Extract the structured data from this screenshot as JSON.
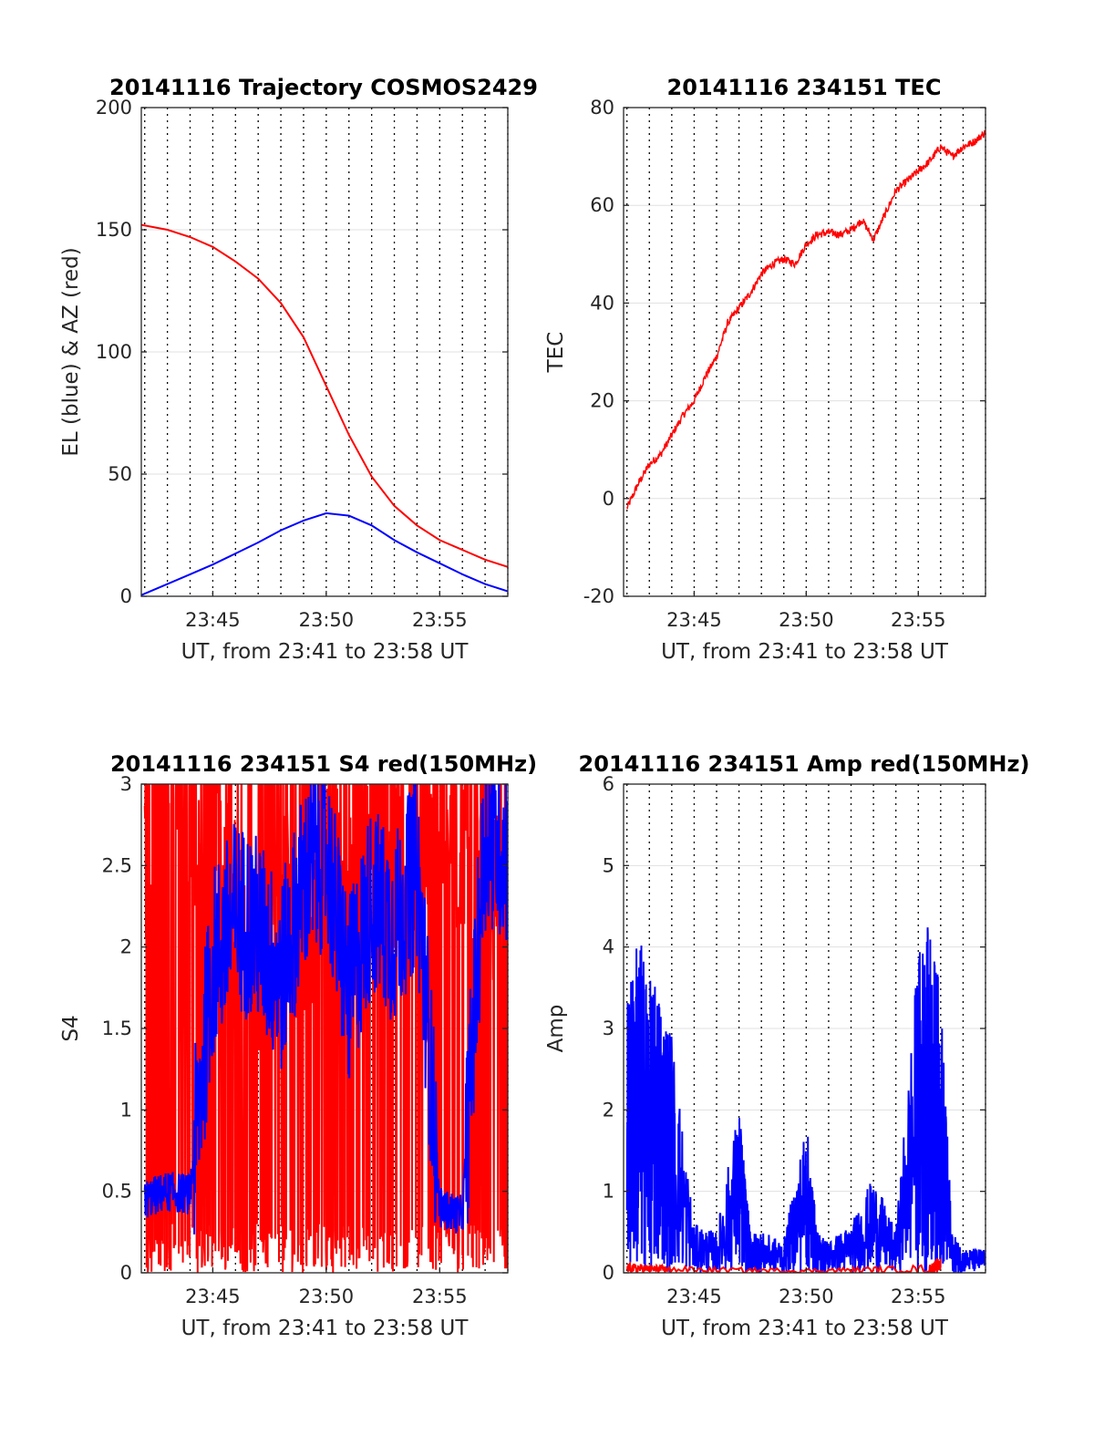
{
  "chart_data": [
    {
      "type": "line",
      "title": "20141116 Trajectory COSMOS2429",
      "xlabel": "UT, from 23:41 to 23:58 UT",
      "ylabel": "EL (blue) & AZ (red)",
      "xlim": [
        "23:41:51",
        "23:58:00"
      ],
      "ylim": [
        0,
        200
      ],
      "xticks": [
        "23:45",
        "23:50",
        "23:55"
      ],
      "yticks": [
        0,
        50,
        100,
        150,
        200
      ],
      "grid": true,
      "vertical_dotted_gridlines": true,
      "series": [
        {
          "color": "#ff0000",
          "x": [
            "23:41:51",
            "23:43:00",
            "23:44:00",
            "23:45:00",
            "23:46:00",
            "23:47:00",
            "23:48:00",
            "23:49:00",
            "23:50:00",
            "23:51:00",
            "23:52:00",
            "23:53:00",
            "23:54:00",
            "23:55:00",
            "23:56:00",
            "23:57:00",
            "23:58:00"
          ],
          "values": [
            152,
            150,
            147,
            143,
            137,
            130,
            120,
            106,
            86,
            66,
            49,
            37,
            29,
            23,
            19,
            15,
            12
          ]
        },
        {
          "color": "#0000ff",
          "x": [
            "23:41:51",
            "23:43:00",
            "23:44:00",
            "23:45:00",
            "23:46:00",
            "23:47:00",
            "23:48:00",
            "23:49:00",
            "23:50:00",
            "23:51:00",
            "23:52:00",
            "23:53:00",
            "23:54:00",
            "23:55:00",
            "23:56:00",
            "23:57:00",
            "23:58:00"
          ],
          "values": [
            0.5,
            5,
            9,
            13,
            17.5,
            22,
            27,
            31,
            34,
            33,
            29,
            23,
            18,
            13.5,
            9,
            5,
            2
          ]
        }
      ]
    },
    {
      "type": "line",
      "title": "20141116 234151 TEC",
      "xlabel": "UT, from 23:41 to 23:58 UT",
      "ylabel": "TEC",
      "xlim": [
        "23:41:51",
        "23:58:00"
      ],
      "ylim": [
        -20,
        80
      ],
      "xticks": [
        "23:45",
        "23:50",
        "23:55"
      ],
      "yticks": [
        -20,
        0,
        20,
        40,
        60,
        80
      ],
      "grid": true,
      "series": [
        {
          "color": "#ff0000",
          "x": [
            "23:42:00",
            "23:42:30",
            "23:43:00",
            "23:43:30",
            "23:44:00",
            "23:44:30",
            "23:45:00",
            "23:45:30",
            "23:46:00",
            "23:46:30",
            "23:47:00",
            "23:47:30",
            "23:48:00",
            "23:48:30",
            "23:49:00",
            "23:49:30",
            "23:50:00",
            "23:50:30",
            "23:51:00",
            "23:51:30",
            "23:52:00",
            "23:52:30",
            "23:53:00",
            "23:53:30",
            "23:54:00",
            "23:54:30",
            "23:55:00",
            "23:55:30",
            "23:56:00",
            "23:56:30",
            "23:57:00",
            "23:57:30",
            "23:58:00"
          ],
          "values": [
            -2,
            3,
            7,
            9,
            13,
            17,
            20,
            25,
            29,
            36,
            39,
            42,
            46,
            48,
            49,
            48,
            52,
            54,
            54.5,
            54,
            55,
            57,
            53,
            58,
            63,
            65,
            67,
            69,
            72,
            70,
            72,
            73,
            75
          ]
        }
      ]
    },
    {
      "type": "line",
      "title": "20141116 234151 S4 red(150MHz)",
      "xlabel": "UT, from 23:41 to 23:58 UT",
      "ylabel": "S4",
      "xlim": [
        "23:41:51",
        "23:58:00"
      ],
      "ylim": [
        0,
        3
      ],
      "xticks": [
        "23:45",
        "23:50",
        "23:55"
      ],
      "yticks": [
        0,
        0.5,
        1,
        1.5,
        2,
        2.5,
        3
      ],
      "grid": true,
      "series": [
        {
          "color": "#ff0000",
          "x": [
            "23:42:00",
            "23:43:00",
            "23:44:00",
            "23:45:00",
            "23:46:00",
            "23:47:00",
            "23:48:00",
            "23:49:00",
            "23:50:00",
            "23:51:00",
            "23:52:00",
            "23:53:00",
            "23:54:00",
            "23:55:00",
            "23:56:00",
            "23:57:00",
            "23:58:00"
          ],
          "values": [
            2.6,
            2.8,
            2.4,
            2.7,
            2.2,
            1.8,
            2.5,
            2.0,
            2.6,
            2.3,
            2.8,
            2.4,
            2.7,
            2.9,
            2.6,
            2.5,
            2.2
          ]
        },
        {
          "color": "#0000ff",
          "x": [
            "23:42:00",
            "23:43:00",
            "23:44:00",
            "23:45:00",
            "23:46:00",
            "23:47:00",
            "23:48:00",
            "23:49:00",
            "23:50:00",
            "23:51:00",
            "23:52:00",
            "23:53:00",
            "23:54:00",
            "23:55:00",
            "23:56:00",
            "23:57:00",
            "23:58:00"
          ],
          "values": [
            0.45,
            0.5,
            0.48,
            1.9,
            2.2,
            2.1,
            1.8,
            2.4,
            2.6,
            1.7,
            2.3,
            2.1,
            2.5,
            0.4,
            0.35,
            2.7,
            2.6
          ]
        }
      ]
    },
    {
      "type": "line",
      "title": "20141116 234151 Amp red(150MHz)",
      "xlabel": "UT, from 23:41 to 23:58 UT",
      "ylabel": "Amp",
      "xlim": [
        "23:41:51",
        "23:58:00"
      ],
      "ylim": [
        0,
        6
      ],
      "xticks": [
        "23:45",
        "23:50",
        "23:55"
      ],
      "yticks": [
        0,
        1,
        2,
        3,
        4,
        5,
        6
      ],
      "grid": true,
      "series": [
        {
          "color": "#0000ff",
          "x": [
            "23:42:00",
            "23:42:30",
            "23:43:00",
            "23:43:30",
            "23:44:00",
            "23:45:00",
            "23:46:00",
            "23:47:00",
            "23:47:30",
            "23:48:00",
            "23:49:00",
            "23:50:00",
            "23:50:30",
            "23:51:00",
            "23:52:00",
            "23:53:00",
            "23:54:00",
            "23:55:00",
            "23:55:30",
            "23:56:00",
            "23:56:30",
            "23:57:00",
            "23:58:00"
          ],
          "values": [
            3.3,
            4.3,
            3.6,
            3.5,
            3.0,
            0.6,
            0.5,
            2.1,
            0.5,
            0.5,
            0.4,
            1.9,
            0.5,
            0.4,
            0.6,
            1.2,
            0.5,
            4.0,
            4.3,
            3.5,
            0.5,
            0.3,
            0.3
          ]
        },
        {
          "color": "#ff0000",
          "x": [
            "23:42:00",
            "23:43:00",
            "23:44:00",
            "23:50:00",
            "23:55:30",
            "23:56:00"
          ],
          "values": [
            0.12,
            0.1,
            0.08,
            0.05,
            0.1,
            0.2
          ]
        }
      ]
    }
  ]
}
